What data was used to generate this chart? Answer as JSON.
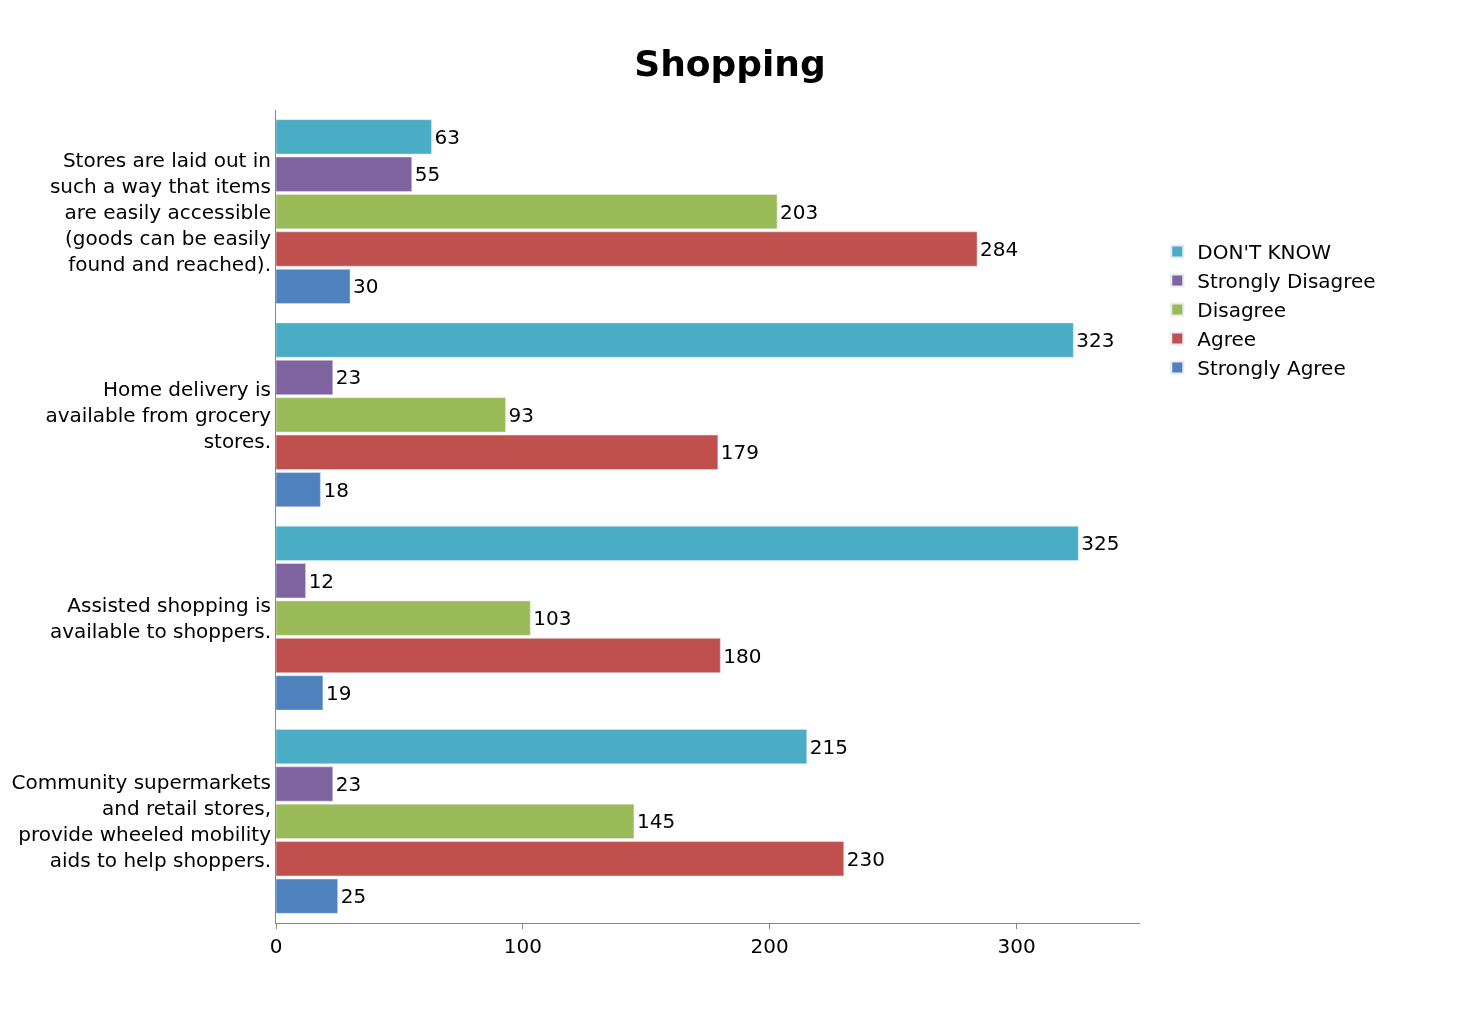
{
  "chart_data": {
    "type": "bar",
    "orientation": "horizontal",
    "title": "Shopping",
    "categories": [
      "Stores are laid out in such a way that items are easily accessible (goods can be easily found and reached).",
      "Home delivery is available from grocery stores.",
      "Assisted shopping is available to shoppers.",
      "Community supermarkets and retail stores, provide wheeled mobility aids to help shoppers."
    ],
    "series": [
      {
        "name": "DON'T KNOW",
        "color": "#4bacc6",
        "values": [
          63,
          323,
          325,
          215
        ]
      },
      {
        "name": "Strongly Disagree",
        "color": "#8064a2",
        "values": [
          55,
          23,
          12,
          23
        ]
      },
      {
        "name": "Disagree",
        "color": "#9bbb59",
        "values": [
          203,
          93,
          103,
          145
        ]
      },
      {
        "name": "Agree",
        "color": "#c0504d",
        "values": [
          284,
          179,
          180,
          230
        ]
      },
      {
        "name": "Strongly Agree",
        "color": "#4f81bd",
        "values": [
          30,
          18,
          19,
          25
        ]
      }
    ],
    "xlim": [
      0,
      350
    ],
    "xticks": [
      0,
      100,
      200,
      300
    ],
    "grid": false,
    "legend": "right",
    "data_labels": true
  }
}
